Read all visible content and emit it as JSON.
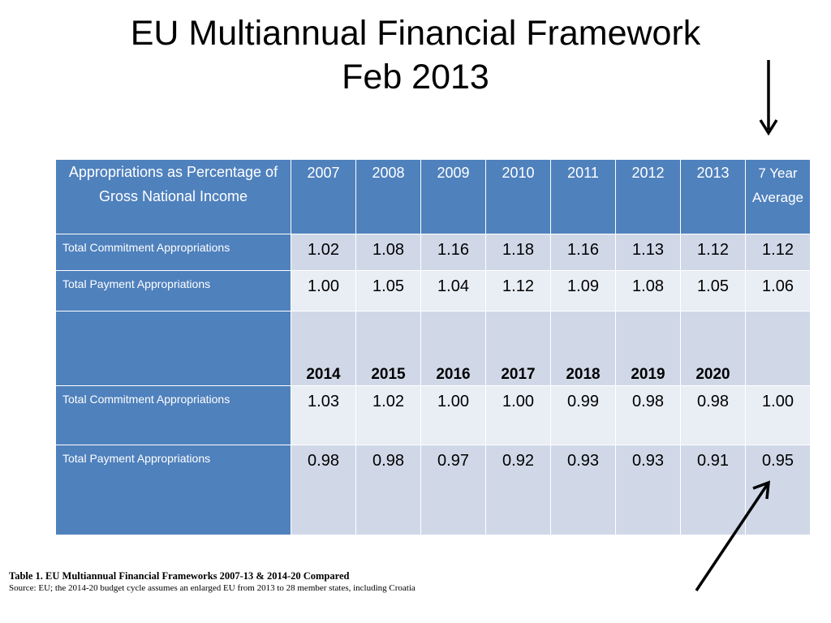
{
  "title": {
    "line1": "EU Multiannual Financial Framework",
    "line2": "Feb 2013"
  },
  "table": {
    "corner_label": "Appropriations as Percentage of Gross National Income",
    "years_first": [
      "2007",
      "2008",
      "2009",
      "2010",
      "2011",
      "2012",
      "2013"
    ],
    "avg_label": "7 Year Average",
    "period1": {
      "commitment": {
        "label": "Total Commitment Appropriations",
        "values": [
          "1.02",
          "1.08",
          "1.16",
          "1.18",
          "1.16",
          "1.13",
          "1.12"
        ],
        "avg": "1.12"
      },
      "payment": {
        "label": "Total Payment Appropriations",
        "values": [
          "1.00",
          "1.05",
          "1.04",
          "1.12",
          "1.09",
          "1.08",
          "1.05"
        ],
        "avg": "1.06"
      }
    },
    "years_second": [
      "2014",
      "2015",
      "2016",
      "2017",
      "2018",
      "2019",
      "2020"
    ],
    "period2": {
      "commitment": {
        "label": "Total Commitment Appropriations",
        "values": [
          "1.03",
          "1.02",
          "1.00",
          "1.00",
          "0.99",
          "0.98",
          "0.98"
        ],
        "avg": "1.00"
      },
      "payment": {
        "label": "Total Payment Appropriations",
        "values": [
          "0.98",
          "0.98",
          "0.97",
          "0.92",
          "0.93",
          "0.93",
          "0.91"
        ],
        "avg": "0.95"
      }
    }
  },
  "caption": {
    "line1": "Table  1. EU Multiannual Financial Frameworks 2007-13 & 2014-20 Compared",
    "line2": "Source: EU; the 2014-20 budget cycle assumes an enlarged EU from 2013 to 28 member states, including Croatia"
  },
  "colors": {
    "header": "#4f81bd",
    "row_dark": "#d0d8e8",
    "row_light": "#e9edf4"
  },
  "icons": [
    "arrow-down-icon",
    "arrow-up-right-icon"
  ]
}
